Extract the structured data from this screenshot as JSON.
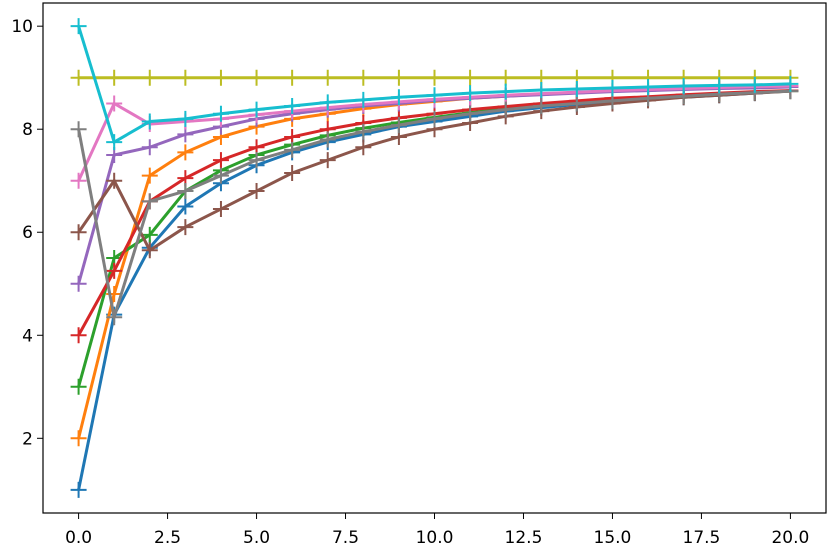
{
  "chart_data": {
    "type": "line",
    "x": [
      0,
      1,
      2,
      3,
      4,
      5,
      6,
      7,
      8,
      9,
      10,
      11,
      12,
      13,
      14,
      15,
      16,
      17,
      18,
      19,
      20
    ],
    "series": [
      {
        "color": "#1f77b4",
        "values": [
          1,
          4.4,
          5.7,
          6.5,
          6.95,
          7.3,
          7.55,
          7.75,
          7.9,
          8.05,
          8.15,
          8.25,
          8.35,
          8.42,
          8.48,
          8.53,
          8.58,
          8.62,
          8.66,
          8.7,
          8.75
        ]
      },
      {
        "color": "#ff7f0e",
        "values": [
          2,
          4.8,
          7.1,
          7.55,
          7.85,
          8.05,
          8.2,
          8.3,
          8.4,
          8.48,
          8.54,
          8.6,
          8.64,
          8.68,
          8.71,
          8.74,
          8.76,
          8.78,
          8.8,
          8.82,
          8.83
        ]
      },
      {
        "color": "#2ca02c",
        "values": [
          3,
          5.5,
          5.95,
          6.8,
          7.2,
          7.5,
          7.7,
          7.88,
          8.02,
          8.13,
          8.23,
          8.32,
          8.4,
          8.46,
          8.52,
          8.57,
          8.61,
          8.65,
          8.68,
          8.71,
          8.74
        ]
      },
      {
        "color": "#d62728",
        "values": [
          4,
          5.25,
          6.6,
          7.05,
          7.4,
          7.65,
          7.85,
          8.0,
          8.12,
          8.22,
          8.3,
          8.38,
          8.44,
          8.5,
          8.55,
          8.6,
          8.63,
          8.67,
          8.7,
          8.73,
          8.75
        ]
      },
      {
        "color": "#9467bd",
        "values": [
          5,
          7.5,
          7.65,
          7.9,
          8.05,
          8.2,
          8.3,
          8.38,
          8.45,
          8.5,
          8.56,
          8.6,
          8.64,
          8.67,
          8.7,
          8.73,
          8.75,
          8.77,
          8.79,
          8.8,
          8.82
        ]
      },
      {
        "color": "#8c564b",
        "values": [
          6,
          7.0,
          5.65,
          6.1,
          6.45,
          6.8,
          7.15,
          7.4,
          7.65,
          7.85,
          8.0,
          8.12,
          8.25,
          8.35,
          8.43,
          8.5,
          8.56,
          8.62,
          8.66,
          8.7,
          8.74
        ]
      },
      {
        "color": "#e377c2",
        "values": [
          7,
          8.5,
          8.1,
          8.15,
          8.2,
          8.28,
          8.35,
          8.42,
          8.48,
          8.53,
          8.58,
          8.62,
          8.66,
          8.69,
          8.72,
          8.75,
          8.77,
          8.79,
          8.81,
          8.83,
          8.84
        ]
      },
      {
        "color": "#7f7f7f",
        "values": [
          8,
          4.35,
          6.6,
          6.8,
          7.1,
          7.4,
          7.6,
          7.8,
          7.95,
          8.08,
          8.2,
          8.3,
          8.38,
          8.45,
          8.5,
          8.55,
          8.6,
          8.64,
          8.68,
          8.71,
          8.74
        ]
      },
      {
        "color": "#bcbd22",
        "values": [
          9,
          9,
          9,
          9,
          9,
          9,
          9,
          9,
          9,
          9,
          9,
          9,
          9,
          9,
          9,
          9,
          9,
          9,
          9,
          9,
          9
        ]
      },
      {
        "color": "#17becf",
        "values": [
          10,
          7.75,
          8.15,
          8.2,
          8.3,
          8.38,
          8.45,
          8.52,
          8.57,
          8.62,
          8.66,
          8.7,
          8.73,
          8.76,
          8.78,
          8.8,
          8.82,
          8.84,
          8.85,
          8.86,
          8.88
        ]
      }
    ],
    "xlim": [
      -1,
      21
    ],
    "ylim": [
      0.55,
      10.45
    ],
    "xticks": [
      {
        "value": 0,
        "label": "0.0"
      },
      2.5,
      {
        "value": 5,
        "label": "5.0"
      },
      7.5,
      {
        "value": 10,
        "label": "10.0"
      },
      12.5,
      {
        "value": 15,
        "label": "15.0"
      },
      17.5,
      {
        "value": 20,
        "label": "20.0"
      }
    ],
    "yticks": [
      2,
      4,
      6,
      8,
      10
    ],
    "marker": "+"
  }
}
